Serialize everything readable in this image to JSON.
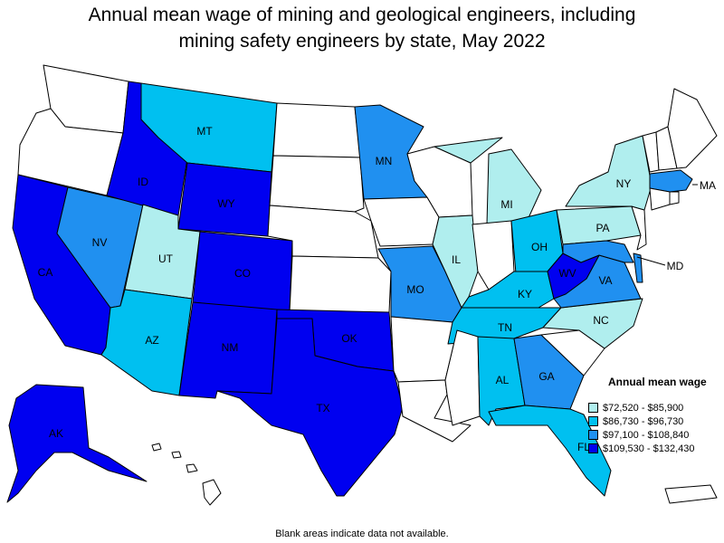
{
  "title": {
    "line1": "Annual mean wage of mining and geological engineers, including",
    "line2": "mining safety engineers by state, May 2022"
  },
  "colors": {
    "blank": "#ffffff",
    "tier1": "#b0eeee",
    "tier2": "#00c0f0",
    "tier3": "#2090f0",
    "tier4": "#0000f0"
  },
  "legend": {
    "title": "Annual mean wage",
    "items": [
      {
        "label": "$72,520 - $85,900",
        "tier": 1
      },
      {
        "label": "$86,730 - $96,730",
        "tier": 2
      },
      {
        "label": "$97,100 - $108,840",
        "tier": 3
      },
      {
        "label": "$109,530 - $132,430",
        "tier": 4
      }
    ]
  },
  "states": {
    "WA": {
      "tier": 0
    },
    "OR": {
      "tier": 0
    },
    "CA": {
      "label": "CA",
      "tier": 4
    },
    "NV": {
      "label": "NV",
      "tier": 3
    },
    "ID": {
      "label": "ID",
      "tier": 4
    },
    "MT": {
      "label": "MT",
      "tier": 2
    },
    "WY": {
      "label": "WY",
      "tier": 4
    },
    "UT": {
      "label": "UT",
      "tier": 1
    },
    "CO": {
      "label": "CO",
      "tier": 4
    },
    "AZ": {
      "label": "AZ",
      "tier": 2
    },
    "NM": {
      "label": "NM",
      "tier": 4
    },
    "ND": {
      "tier": 0
    },
    "SD": {
      "tier": 0
    },
    "NE": {
      "tier": 0
    },
    "KS": {
      "tier": 0
    },
    "OK": {
      "label": "OK",
      "tier": 4
    },
    "TX": {
      "label": "TX",
      "tier": 4
    },
    "MN": {
      "label": "MN",
      "tier": 3
    },
    "IA": {
      "tier": 0
    },
    "MO": {
      "label": "MO",
      "tier": 3
    },
    "AR": {
      "tier": 0
    },
    "LA": {
      "tier": 0
    },
    "WI": {
      "tier": 0
    },
    "IL": {
      "label": "IL",
      "tier": 1
    },
    "MI": {
      "label": "MI",
      "tier": 1
    },
    "IN": {
      "tier": 0
    },
    "OH": {
      "label": "OH",
      "tier": 2
    },
    "KY": {
      "label": "KY",
      "tier": 2
    },
    "TN": {
      "label": "TN",
      "tier": 2
    },
    "MS": {
      "tier": 0
    },
    "AL": {
      "label": "AL",
      "tier": 2
    },
    "GA": {
      "label": "GA",
      "tier": 3
    },
    "FL": {
      "label": "FL",
      "tier": 2
    },
    "SC": {
      "tier": 0
    },
    "NC": {
      "label": "NC",
      "tier": 1
    },
    "VA": {
      "label": "VA",
      "tier": 3
    },
    "WV": {
      "label": "WV",
      "tier": 4
    },
    "PA": {
      "label": "PA",
      "tier": 1
    },
    "NY": {
      "label": "NY",
      "tier": 1
    },
    "MD": {
      "label": "MD",
      "tier": 3
    },
    "NJ": {
      "tier": 0
    },
    "DE": {
      "tier": 3
    },
    "MA": {
      "label": "MA",
      "tier": 3
    },
    "CT": {
      "tier": 0
    },
    "RI": {
      "tier": 0
    },
    "VT": {
      "tier": 0
    },
    "NH": {
      "tier": 0
    },
    "ME": {
      "tier": 0
    },
    "AK": {
      "label": "AK",
      "tier": 4
    },
    "HI": {
      "tier": 0
    },
    "PR": {
      "tier": 0
    }
  },
  "footnote": "Blank areas indicate data not available."
}
